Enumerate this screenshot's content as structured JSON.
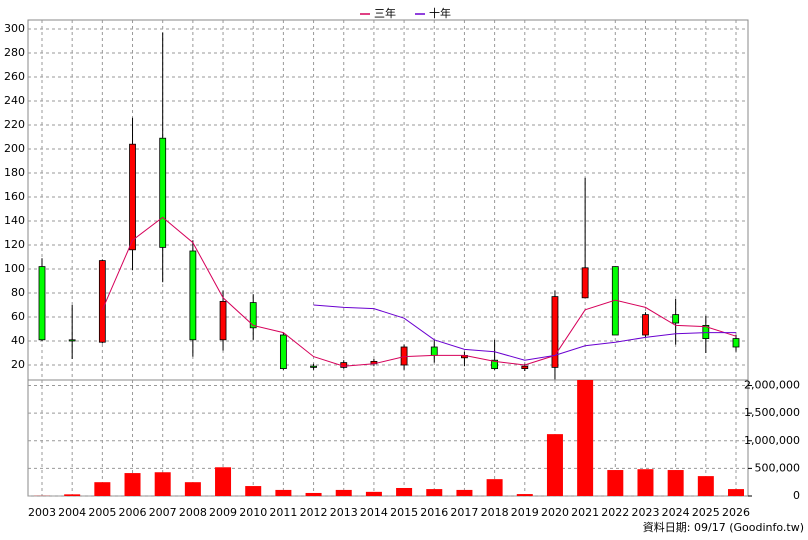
{
  "chart_data": {
    "type": "candlestick",
    "categories": [
      "2003",
      "2004",
      "2005",
      "2006",
      "2007",
      "2008",
      "2009",
      "2010",
      "2011",
      "2012",
      "2013",
      "2014",
      "2015",
      "2016",
      "2017",
      "2018",
      "2019",
      "2020",
      "2021",
      "2022",
      "2023",
      "2024",
      "2025",
      "2026"
    ],
    "open": [
      102,
      41,
      39,
      116,
      209,
      115,
      41,
      72,
      45,
      19,
      18,
      21,
      20,
      35,
      26,
      24,
      17,
      18,
      76,
      102,
      45,
      62,
      53,
      42
    ],
    "close": [
      41,
      40,
      107,
      204,
      118,
      41,
      73,
      51,
      17,
      18,
      22,
      23,
      35,
      28,
      28,
      17,
      19,
      77,
      101,
      45,
      62,
      55,
      42,
      35
    ],
    "high": [
      109,
      70,
      108,
      226,
      297,
      124,
      82,
      79,
      47,
      21,
      24,
      25,
      37,
      41,
      31,
      41,
      21,
      82,
      176,
      102,
      64,
      75,
      61,
      45
    ],
    "low": [
      40,
      25,
      38,
      99,
      89,
      27,
      32,
      41,
      16,
      16,
      17,
      19,
      16,
      22,
      19,
      16,
      15,
      8,
      76,
      45,
      43,
      37,
      30,
      31
    ],
    "up_color": "#ff0000",
    "down_color": "#00ff00",
    "series": [
      {
        "name": "三年",
        "color": "#d6005a",
        "values": [
          null,
          null,
          66,
          124,
          143,
          122,
          76,
          53,
          47,
          27,
          19,
          21,
          27,
          28,
          28,
          23,
          20,
          28,
          66,
          74,
          68,
          53,
          52,
          44
        ]
      },
      {
        "name": "十年",
        "color": "#6a00d0",
        "values": [
          null,
          null,
          null,
          null,
          null,
          null,
          null,
          null,
          null,
          70,
          68,
          67,
          59,
          41,
          33,
          31,
          24,
          28,
          36,
          39,
          43,
          46,
          47,
          47
        ]
      }
    ],
    "volume": [
      3000,
      30000,
      250000,
      415000,
      430000,
      250000,
      520000,
      180000,
      110000,
      55000,
      110000,
      75000,
      145000,
      125000,
      110000,
      305000,
      35000,
      1120000,
      2100000,
      470000,
      485000,
      470000,
      360000,
      125000
    ],
    "volume_color": "#ff0000",
    "ylim": [
      7.5,
      300
    ],
    "yticks": [
      20,
      40,
      60,
      80,
      100,
      120,
      140,
      160,
      180,
      200,
      220,
      240,
      260,
      280,
      300
    ],
    "y2lim": [
      0,
      2100000
    ],
    "y2ticks": [
      0,
      {
        "value": 500000,
        "label": "500,000"
      },
      {
        "value": 1000000,
        "label": "1,000,000"
      },
      {
        "value": 1500000,
        "label": "1,500,000"
      },
      {
        "value": 2000000,
        "label": "2,000,000"
      }
    ],
    "grid": true,
    "source_note": "資料日期: 09/17  (Goodinfo.tw)"
  }
}
